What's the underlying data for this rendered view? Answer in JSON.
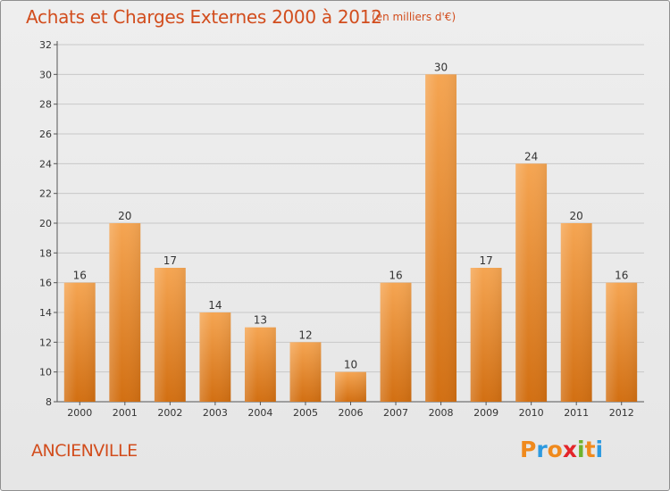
{
  "header": {
    "title": "Achats et Charges Externes 2000 à 2012",
    "unit": "(en milliers d'€)"
  },
  "footer": {
    "commune": "ANCIENVILLE",
    "brand": "Proxiti",
    "brand_colors": [
      "#f08a1d",
      "#2d9ae0",
      "#f08a1d",
      "#e3252a",
      "#6fb22c",
      "#f08a1d",
      "#2d9ae0"
    ]
  },
  "colors": {
    "bar_top": "#f5a552",
    "bar_bottom": "#d26f12",
    "title": "#d24d1d",
    "grid": "#c8c8c8"
  },
  "chart_data": {
    "type": "bar",
    "title": "Achats et Charges Externes 2000 à 2012",
    "subtitle": "(en milliers d'€)",
    "categories": [
      "2000",
      "2001",
      "2002",
      "2003",
      "2004",
      "2005",
      "2006",
      "2007",
      "2008",
      "2009",
      "2010",
      "2011",
      "2012"
    ],
    "values": [
      16,
      20,
      17,
      14,
      13,
      12,
      10,
      16,
      30,
      17,
      24,
      20,
      16
    ],
    "ylim": [
      8,
      32
    ],
    "yticks": [
      8,
      10,
      12,
      14,
      16,
      18,
      20,
      22,
      24,
      26,
      28,
      30,
      32
    ],
    "grid": true,
    "xlabel": "",
    "ylabel": ""
  }
}
